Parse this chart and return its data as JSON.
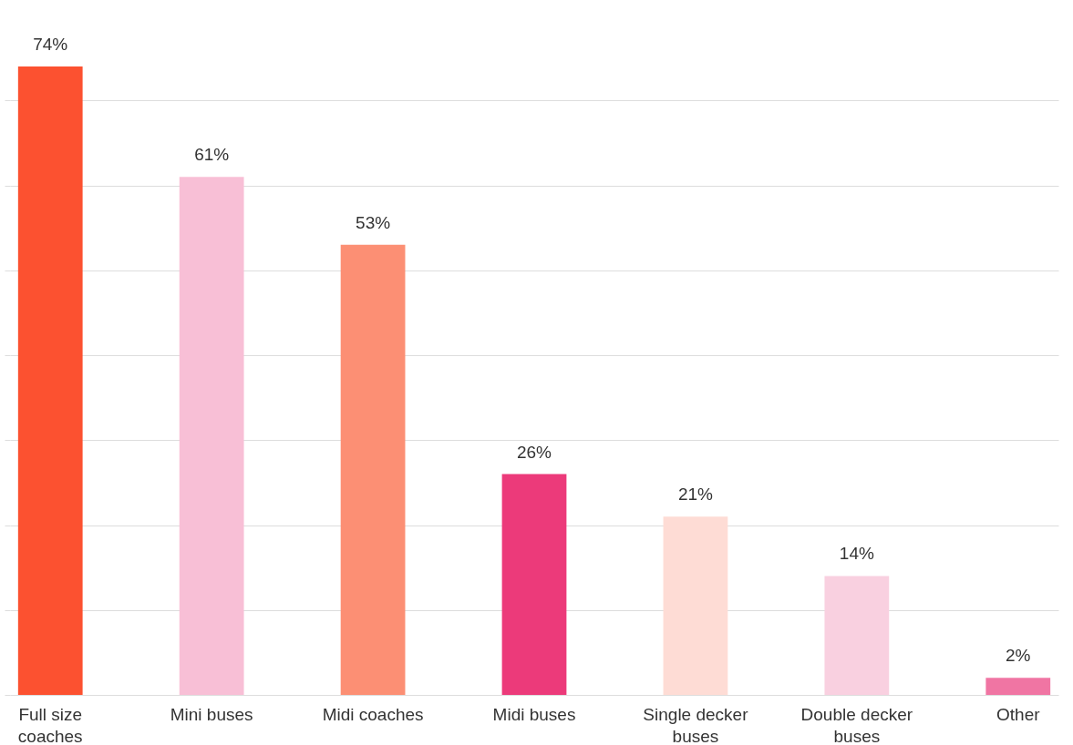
{
  "chart_data": {
    "type": "bar",
    "categories": [
      "Full size coaches",
      "Mini buses",
      "Midi coaches",
      "Midi buses",
      "Single decker buses",
      "Double decker buses",
      "Other"
    ],
    "values": [
      74,
      61,
      53,
      26,
      21,
      14,
      2
    ],
    "value_labels": [
      "74%",
      "61%",
      "53%",
      "26%",
      "21%",
      "14%",
      "2%"
    ],
    "colors": [
      "#fc5130",
      "#f8bfd6",
      "#fc8f74",
      "#ec3a7a",
      "#fedcd5",
      "#f9d0e0",
      "#f075a3"
    ],
    "ylim": [
      0,
      74
    ],
    "yticks": [
      {
        "value": 0,
        "label": null
      },
      {
        "value": 10,
        "label": null
      },
      {
        "value": 20,
        "label": null
      },
      {
        "value": 30,
        "label": null
      },
      {
        "value": 40,
        "label": null
      },
      {
        "value": 50,
        "label": null
      },
      {
        "value": 60,
        "label": null
      },
      {
        "value": 70,
        "label": null
      }
    ],
    "tick_labels": "x",
    "grid": "y"
  }
}
